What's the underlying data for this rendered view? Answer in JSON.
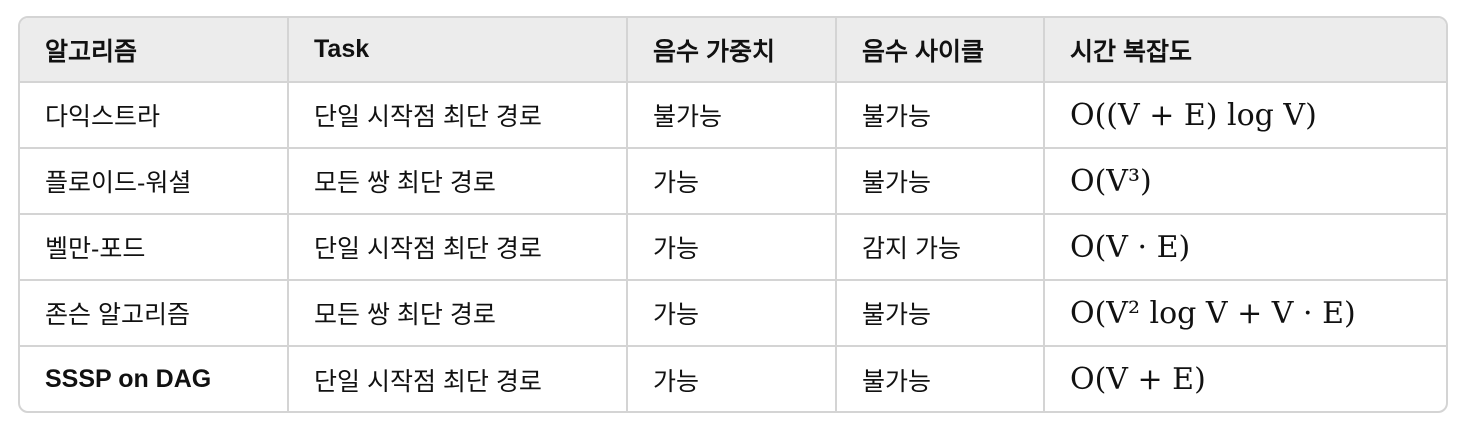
{
  "table": {
    "headers": [
      "알고리즘",
      "Task",
      "음수 가중치",
      "음수 사이클",
      "시간 복잡도"
    ],
    "rows": [
      {
        "algorithm": "다익스트라",
        "task": "단일 시작점 최단 경로",
        "negative_weight": "불가능",
        "negative_cycle": "불가능",
        "complexity": "O((V + E) log V)",
        "bold": false
      },
      {
        "algorithm": "플로이드-워셜",
        "task": "모든 쌍 최단 경로",
        "negative_weight": "가능",
        "negative_cycle": "불가능",
        "complexity": "O(V³)",
        "bold": false
      },
      {
        "algorithm": "벨만-포드",
        "task": "단일 시작점 최단 경로",
        "negative_weight": "가능",
        "negative_cycle": "감지 가능",
        "complexity": "O(V · E)",
        "bold": false
      },
      {
        "algorithm": "존슨 알고리즘",
        "task": "모든 쌍 최단 경로",
        "negative_weight": "가능",
        "negative_cycle": "불가능",
        "complexity": "O(V² log V + V · E)",
        "bold": false
      },
      {
        "algorithm": "SSSP on DAG",
        "task": "단일 시작점 최단 경로",
        "negative_weight": "가능",
        "negative_cycle": "불가능",
        "complexity": "O(V + E)",
        "bold": true
      }
    ]
  }
}
